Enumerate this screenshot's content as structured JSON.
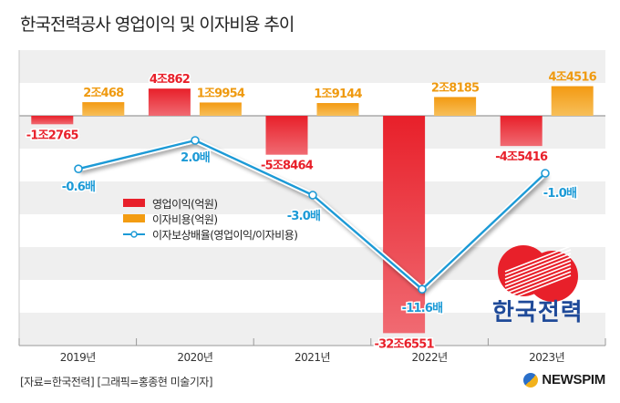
{
  "title": "한국전력공사 영업이익 및 이자비용 추이",
  "source": "[자료=한국전력] [그래픽=홍종현 미술기자]",
  "brand": "NEWSPIM",
  "logo_text": "한국전력",
  "colors": {
    "operating_profit": "#e8202a",
    "interest_expense": "#f39c12",
    "coverage_line": "#1c9ad6",
    "band_gray": "#efefef"
  },
  "chart_data": {
    "type": "bar",
    "title": "한국전력공사 영업이익 및 이자비용 추이",
    "xlabel": "",
    "ylabel": "",
    "categories": [
      "2019년",
      "2020년",
      "2021년",
      "2022년",
      "2023년"
    ],
    "ylim_trillion_won": [
      -34,
      10
    ],
    "grid": "horizontal alternating bands",
    "legend_placement": "center-left",
    "series": [
      {
        "name": "영업이익(억원)",
        "type": "bar",
        "values": [
          -12765,
          40862,
          -58464,
          -326551,
          -45416
        ],
        "labels": [
          "-1조2765",
          "4조862",
          "-5조8464",
          "-32조6551",
          "-4조5416"
        ]
      },
      {
        "name": "이자비용(억원)",
        "type": "bar",
        "values": [
          20468,
          19954,
          19144,
          28185,
          44516
        ],
        "labels": [
          "2조468",
          "1조9954",
          "1조9144",
          "2조8185",
          "4조4516"
        ]
      },
      {
        "name": "이자보상배율(영업이익/이자비용)",
        "type": "line",
        "values": [
          -0.6,
          2.0,
          -3.0,
          -11.6,
          -1.0
        ],
        "labels": [
          "-0.6배",
          "2.0배",
          "-3.0배",
          "-11.6배",
          "-1.0배"
        ]
      }
    ],
    "legend": [
      "영업이익(억원)",
      "이자비용(억원)",
      "이자보상배율(영업이익/이자비용)"
    ]
  }
}
